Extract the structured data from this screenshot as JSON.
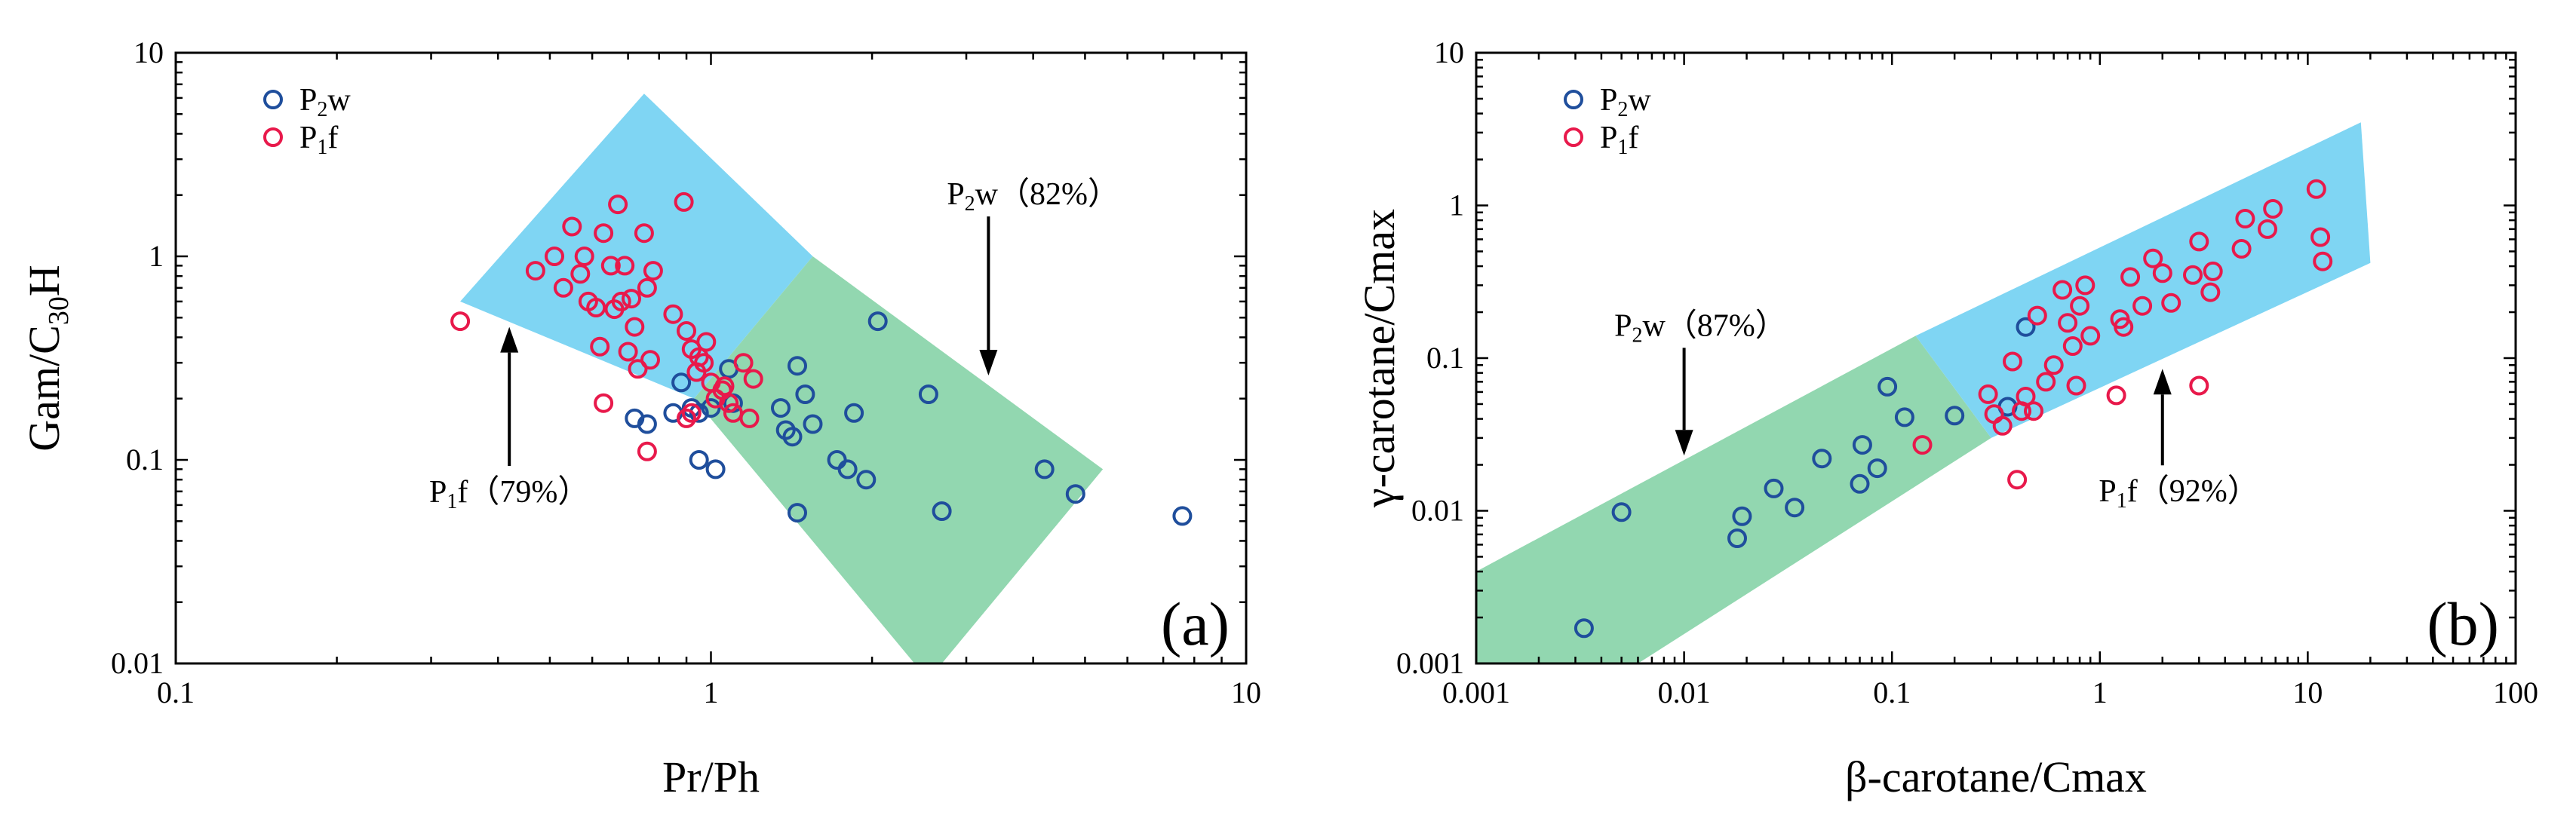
{
  "chart_data": [
    {
      "panel_label": "(a)",
      "type": "scatter",
      "xscale": "log",
      "yscale": "log",
      "xlim": [
        0.1,
        10
      ],
      "ylim": [
        0.01,
        10
      ],
      "xticks": [
        0.1,
        1,
        10
      ],
      "xtick_labels": [
        "0.1",
        "1",
        "10"
      ],
      "yticks": [
        0.01,
        0.1,
        1,
        10
      ],
      "ytick_labels": [
        "0.01",
        "0.1",
        "1",
        "10"
      ],
      "xlabel": "Pr/Ph",
      "ylabel": {
        "main": "Gam/C",
        "sub": "30",
        "tail": "H"
      },
      "legend": {
        "placement": "top-left"
      },
      "series": [
        {
          "name": "P2w",
          "label_main": "P",
          "label_sub": "2",
          "label_tail": "w",
          "color": "#1f4e9c",
          "points": [
            [
              0.72,
              0.16
            ],
            [
              0.76,
              0.15
            ],
            [
              0.85,
              0.17
            ],
            [
              0.88,
              0.24
            ],
            [
              0.92,
              0.18
            ],
            [
              0.95,
              0.17
            ],
            [
              1.0,
              0.18
            ],
            [
              1.02,
              0.09
            ],
            [
              1.08,
              0.28
            ],
            [
              1.1,
              0.19
            ],
            [
              1.35,
              0.18
            ],
            [
              1.38,
              0.14
            ],
            [
              1.42,
              0.13
            ],
            [
              1.45,
              0.29
            ],
            [
              1.5,
              0.21
            ],
            [
              1.55,
              0.15
            ],
            [
              1.72,
              0.1
            ],
            [
              1.8,
              0.09
            ],
            [
              1.85,
              0.17
            ],
            [
              1.95,
              0.08
            ],
            [
              2.05,
              0.48
            ],
            [
              2.55,
              0.21
            ],
            [
              2.7,
              0.056
            ],
            [
              1.45,
              0.055
            ],
            [
              4.2,
              0.09
            ],
            [
              4.8,
              0.068
            ],
            [
              7.6,
              0.053
            ],
            [
              0.95,
              0.1
            ]
          ]
        },
        {
          "name": "P1f",
          "label_main": "P",
          "label_sub": "1",
          "label_tail": "f",
          "color": "#e8194b",
          "points": [
            [
              0.34,
              0.48
            ],
            [
              0.47,
              0.85
            ],
            [
              0.51,
              1.0
            ],
            [
              0.53,
              0.7
            ],
            [
              0.55,
              1.4
            ],
            [
              0.57,
              0.82
            ],
            [
              0.58,
              1.0
            ],
            [
              0.59,
              0.6
            ],
            [
              0.61,
              0.56
            ],
            [
              0.62,
              0.36
            ],
            [
              0.63,
              1.3
            ],
            [
              0.65,
              0.9
            ],
            [
              0.66,
              0.55
            ],
            [
              0.67,
              1.8
            ],
            [
              0.68,
              0.6
            ],
            [
              0.69,
              0.9
            ],
            [
              0.7,
              0.34
            ],
            [
              0.71,
              0.62
            ],
            [
              0.72,
              0.45
            ],
            [
              0.73,
              0.28
            ],
            [
              0.75,
              1.3
            ],
            [
              0.76,
              0.7
            ],
            [
              0.78,
              0.85
            ],
            [
              0.77,
              0.31
            ],
            [
              0.76,
              0.11
            ],
            [
              0.63,
              0.19
            ],
            [
              0.85,
              0.52
            ],
            [
              0.89,
              1.85
            ],
            [
              0.9,
              0.43
            ],
            [
              0.92,
              0.35
            ],
            [
              0.94,
              0.27
            ],
            [
              0.95,
              0.32
            ],
            [
              0.97,
              0.3
            ],
            [
              0.98,
              0.38
            ],
            [
              1.0,
              0.24
            ],
            [
              1.02,
              0.2
            ],
            [
              1.05,
              0.22
            ],
            [
              1.08,
              0.19
            ],
            [
              1.1,
              0.17
            ],
            [
              1.15,
              0.3
            ],
            [
              1.18,
              0.16
            ],
            [
              1.2,
              0.25
            ],
            [
              0.9,
              0.16
            ],
            [
              0.92,
              0.17
            ],
            [
              1.06,
              0.23
            ]
          ]
        }
      ],
      "annotations": [
        {
          "main": "P",
          "sub": "2",
          "tail": "w（82%）",
          "x": 4.0,
          "y": 1.8,
          "arrow_to": [
            3.3,
            0.26
          ]
        },
        {
          "main": "P",
          "sub": "1",
          "tail": "f（79%）",
          "x": 0.42,
          "y": 0.062,
          "arrow_to": [
            0.42,
            0.45
          ]
        }
      ],
      "regions": [
        {
          "name": "P1f-zone",
          "color": "#7fd5f3",
          "polygon": [
            [
              0.34,
              0.6
            ],
            [
              0.75,
              6.3
            ],
            [
              1.55,
              1.0
            ],
            [
              0.93,
              0.2
            ]
          ]
        },
        {
          "name": "P2w-zone",
          "color": "#92d7b0",
          "polygon": [
            [
              0.93,
              0.2
            ],
            [
              1.55,
              1.0
            ],
            [
              5.4,
              0.09
            ],
            [
              2.7,
              0.01
            ],
            [
              2.4,
              0.01
            ]
          ]
        }
      ]
    },
    {
      "panel_label": "(b)",
      "type": "scatter",
      "xscale": "log",
      "yscale": "log",
      "xlim": [
        0.001,
        100
      ],
      "ylim": [
        0.001,
        10
      ],
      "xticks": [
        0.001,
        0.01,
        0.1,
        1,
        10,
        100
      ],
      "xtick_labels": [
        "0.001",
        "0.01",
        "0.1",
        "1",
        "10",
        "100"
      ],
      "yticks": [
        0.001,
        0.01,
        0.1,
        1,
        10
      ],
      "ytick_labels": [
        "0.001",
        "0.01",
        "0.1",
        "1",
        "10"
      ],
      "xlabel": "β-carotane/Cmax",
      "ylabel": {
        "main": "γ-carotane/Cmax",
        "sub": "",
        "tail": ""
      },
      "legend": {
        "placement": "top-left"
      },
      "series": [
        {
          "name": "P2w",
          "label_main": "P",
          "label_sub": "2",
          "label_tail": "w",
          "color": "#1f4e9c",
          "points": [
            [
              0.0033,
              0.0017
            ],
            [
              0.005,
              0.0098
            ],
            [
              0.018,
              0.0066
            ],
            [
              0.019,
              0.0092
            ],
            [
              0.027,
              0.014
            ],
            [
              0.034,
              0.0105
            ],
            [
              0.046,
              0.022
            ],
            [
              0.07,
              0.015
            ],
            [
              0.072,
              0.027
            ],
            [
              0.085,
              0.019
            ],
            [
              0.095,
              0.065
            ],
            [
              0.115,
              0.041
            ],
            [
              0.2,
              0.042
            ],
            [
              0.36,
              0.048
            ],
            [
              0.44,
              0.16
            ]
          ]
        },
        {
          "name": "P1f",
          "label_main": "P",
          "label_sub": "1",
          "label_tail": "f",
          "color": "#e8194b",
          "points": [
            [
              0.14,
              0.027
            ],
            [
              0.29,
              0.058
            ],
            [
              0.31,
              0.043
            ],
            [
              0.34,
              0.036
            ],
            [
              0.38,
              0.095
            ],
            [
              0.4,
              0.016
            ],
            [
              0.42,
              0.045
            ],
            [
              0.44,
              0.056
            ],
            [
              0.48,
              0.045
            ],
            [
              0.5,
              0.19
            ],
            [
              0.55,
              0.07
            ],
            [
              0.6,
              0.09
            ],
            [
              0.66,
              0.28
            ],
            [
              0.7,
              0.17
            ],
            [
              0.74,
              0.12
            ],
            [
              0.77,
              0.066
            ],
            [
              0.8,
              0.22
            ],
            [
              0.85,
              0.3
            ],
            [
              0.9,
              0.14
            ],
            [
              1.2,
              0.057
            ],
            [
              1.25,
              0.18
            ],
            [
              1.3,
              0.16
            ],
            [
              1.4,
              0.34
            ],
            [
              1.6,
              0.22
            ],
            [
              1.8,
              0.45
            ],
            [
              2.0,
              0.36
            ],
            [
              2.2,
              0.23
            ],
            [
              2.8,
              0.35
            ],
            [
              3.0,
              0.066
            ],
            [
              3.0,
              0.58
            ],
            [
              3.4,
              0.27
            ],
            [
              3.5,
              0.37
            ],
            [
              4.8,
              0.52
            ],
            [
              5.0,
              0.82
            ],
            [
              6.4,
              0.7
            ],
            [
              6.8,
              0.95
            ],
            [
              11.0,
              1.28
            ],
            [
              11.5,
              0.62
            ],
            [
              11.8,
              0.43
            ]
          ]
        }
      ],
      "annotations": [
        {
          "main": "P",
          "sub": "2",
          "tail": "w（87%）",
          "x": 0.012,
          "y": 0.14,
          "arrow_to": [
            0.01,
            0.023
          ]
        },
        {
          "main": "P",
          "sub": "1",
          "tail": "f（92%）",
          "x": 2.4,
          "y": 0.0115,
          "arrow_to": [
            2.0,
            0.085
          ]
        }
      ],
      "regions": [
        {
          "name": "P2w-zone",
          "color": "#92d7b0",
          "polygon": [
            [
              0.001,
              0.001
            ],
            [
              0.001,
              0.004
            ],
            [
              0.13,
              0.14
            ],
            [
              0.3,
              0.03
            ],
            [
              0.006,
              0.001
            ]
          ]
        },
        {
          "name": "P1f-zone",
          "color": "#7fd5f3",
          "polygon": [
            [
              0.13,
              0.14
            ],
            [
              18,
              3.5
            ],
            [
              20,
              0.42
            ],
            [
              0.3,
              0.03
            ]
          ]
        }
      ]
    }
  ]
}
